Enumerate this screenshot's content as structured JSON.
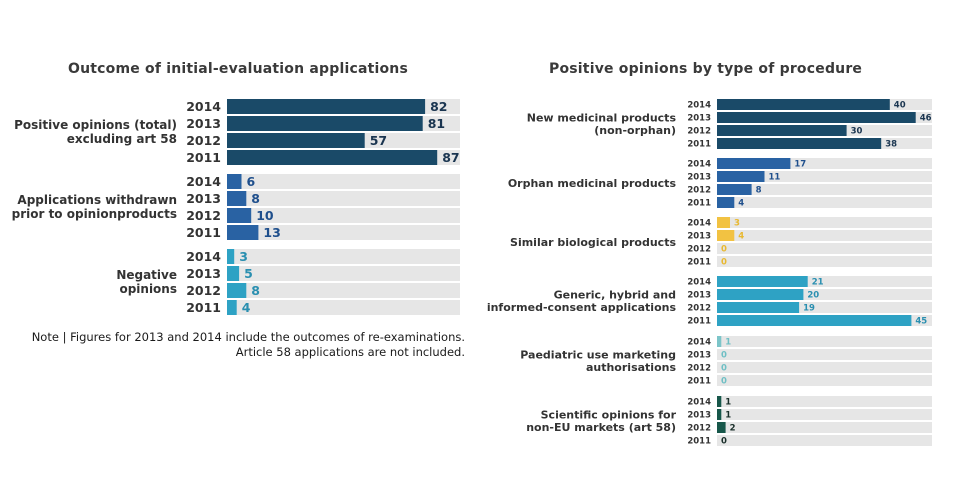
{
  "chart_data": [
    {
      "type": "bar",
      "orientation": "horizontal",
      "title": "Outcome of initial-evaluation applications",
      "xlim": [
        0,
        100
      ],
      "groups": [
        {
          "label_lines": [
            "Positive opinions (total)",
            "excluding art 58"
          ],
          "color": "#1a4a68",
          "value_color": "#1a3550",
          "categories": [
            "2014",
            "2013",
            "2012",
            "2011"
          ],
          "values": [
            82,
            81,
            57,
            87
          ]
        },
        {
          "label_lines": [
            "Applications withdrawn",
            "prior to opinionproducts"
          ],
          "color": "#2962a3",
          "value_color": "#1f4f8c",
          "categories": [
            "2014",
            "2013",
            "2012",
            "2011"
          ],
          "values": [
            6,
            8,
            10,
            13
          ]
        },
        {
          "label_lines": [
            "Negative",
            "opinions"
          ],
          "color": "#2ea2c4",
          "value_color": "#2a8fb0",
          "categories": [
            "2014",
            "2013",
            "2012",
            "2011"
          ],
          "values": [
            3,
            5,
            8,
            4
          ]
        }
      ],
      "note_lines": [
        "Note | Figures for 2013 and 2014 include the outcomes of re-examinations.",
        "Article 58 applications are not included."
      ]
    },
    {
      "type": "bar",
      "orientation": "horizontal",
      "title": "Positive opinions by type of procedure",
      "xlim": [
        0,
        50
      ],
      "groups": [
        {
          "label_lines": [
            "New medicinal products",
            "(non-orphan)"
          ],
          "color": "#1a4a68",
          "value_color": "#1a3550",
          "categories": [
            "2014",
            "2013",
            "2012",
            "2011"
          ],
          "values": [
            40,
            46,
            30,
            38
          ]
        },
        {
          "label_lines": [
            "Orphan medicinal products"
          ],
          "color": "#2962a3",
          "value_color": "#1f4f8c",
          "categories": [
            "2014",
            "2013",
            "2012",
            "2011"
          ],
          "values": [
            17,
            11,
            8,
            4
          ]
        },
        {
          "label_lines": [
            "Similar biological products"
          ],
          "color": "#f2c242",
          "value_color": "#e8b830",
          "categories": [
            "2014",
            "2013",
            "2012",
            "2011"
          ],
          "values": [
            3,
            4,
            0,
            0
          ]
        },
        {
          "label_lines": [
            "Generic, hybrid and",
            "informed-consent applications"
          ],
          "color": "#2ea2c4",
          "value_color": "#2a8fb0",
          "categories": [
            "2014",
            "2013",
            "2012",
            "2011"
          ],
          "values": [
            21,
            20,
            19,
            45
          ]
        },
        {
          "label_lines": [
            "Paediatric use marketing",
            "authorisations"
          ],
          "color": "#7cc5c9",
          "value_color": "#6fbfc4",
          "categories": [
            "2014",
            "2013",
            "2012",
            "2011"
          ],
          "values": [
            1,
            0,
            0,
            0
          ]
        },
        {
          "label_lines": [
            "Scientific opinions for",
            "non-EU markets (art 58)"
          ],
          "color": "#17574a",
          "value_color": "#1a2f2a",
          "categories": [
            "2014",
            "2013",
            "2012",
            "2011"
          ],
          "values": [
            1,
            1,
            2,
            0
          ]
        }
      ]
    }
  ],
  "colors": {
    "track": "#e6e6e6",
    "text": "#333333"
  }
}
